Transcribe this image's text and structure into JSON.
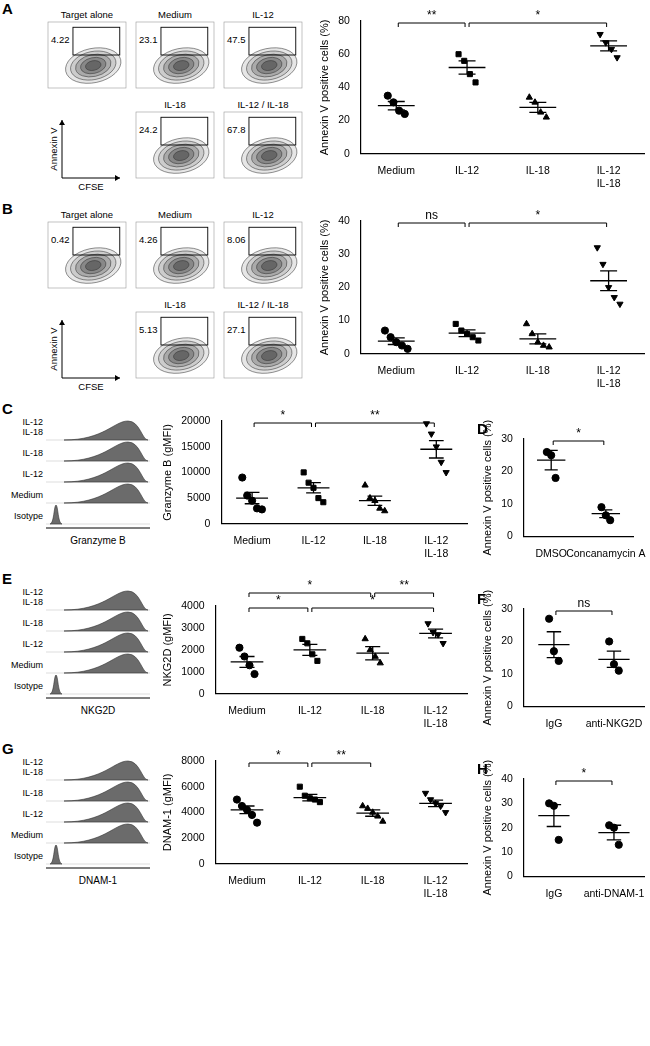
{
  "chart_data": [
    {
      "type": "contour",
      "title": "A",
      "x_label": "CFSE",
      "y_label": "Annexin V",
      "categories": [
        "Target alone",
        "Medium",
        "IL-12",
        "IL-18",
        "IL-12 / IL-18"
      ],
      "values": [
        4.22,
        23.1,
        47.5,
        24.2,
        67.8
      ],
      "data_labels": true
    },
    {
      "type": "dot",
      "y_label": "Annexin V positive cells (%)",
      "ylim": [
        0,
        80
      ],
      "yticks": [
        0,
        20,
        40,
        60,
        80
      ],
      "color": "#000000",
      "series": [
        {
          "name": "Medium",
          "marker": "circle",
          "values": [
            35,
            31,
            26,
            24
          ],
          "mean": 29,
          "sem": 2.5
        },
        {
          "name": "IL-12",
          "marker": "square",
          "values": [
            60,
            56,
            48,
            43
          ],
          "mean": 52,
          "sem": 4
        },
        {
          "name": "IL-18",
          "marker": "triangle",
          "values": [
            34,
            31,
            25,
            22
          ],
          "mean": 28,
          "sem": 3
        },
        {
          "name": "IL-12\nIL-18",
          "marker": "triangle-down",
          "values": [
            72,
            67,
            63,
            58
          ],
          "mean": 65,
          "sem": 3
        }
      ],
      "annotations": [
        {
          "from": "Medium",
          "to": "IL-12",
          "label": "**"
        },
        {
          "from": "IL-12",
          "to": "IL-12\nIL-18",
          "label": "*"
        }
      ]
    },
    {
      "type": "contour",
      "title": "B",
      "x_label": "CFSE",
      "y_label": "Annexin V",
      "categories": [
        "Target alone",
        "Medium",
        "IL-12",
        "IL-18",
        "IL-12 / IL-18"
      ],
      "values": [
        0.42,
        4.26,
        8.06,
        5.13,
        27.1
      ],
      "data_labels": true
    },
    {
      "type": "dot",
      "y_label": "Annexin V positive cells (%)",
      "ylim": [
        0,
        40
      ],
      "yticks": [
        0,
        10,
        20,
        30,
        40
      ],
      "color": "#000000",
      "series": [
        {
          "name": "Medium",
          "marker": "circle",
          "values": [
            7,
            5,
            3.5,
            2.5,
            1.5
          ],
          "mean": 3.8,
          "sem": 1
        },
        {
          "name": "IL-12",
          "marker": "square",
          "values": [
            9,
            7,
            6,
            5,
            4
          ],
          "mean": 6.2,
          "sem": 1
        },
        {
          "name": "IL-18",
          "marker": "triangle",
          "values": [
            9,
            6,
            3.5,
            2.5,
            2
          ],
          "mean": 4.5,
          "sem": 1.5
        },
        {
          "name": "IL-12\nIL-18",
          "marker": "triangle-down",
          "values": [
            32,
            27,
            20,
            17,
            15
          ],
          "mean": 22,
          "sem": 3
        }
      ],
      "annotations": [
        {
          "from": "Medium",
          "to": "IL-12",
          "label": "ns"
        },
        {
          "from": "IL-12",
          "to": "IL-12\nIL-18",
          "label": "*"
        }
      ]
    },
    {
      "type": "density_overlay",
      "title": "C",
      "x_label": "Granzyme B",
      "categories": [
        "IL-12\nIL-18",
        "IL-18",
        "IL-12",
        "Medium",
        "Isotype"
      ]
    },
    {
      "type": "dot",
      "y_label": "Granzyme B (gMFI)",
      "ylim": [
        0,
        20000
      ],
      "yticks": [
        0,
        5000,
        10000,
        15000,
        20000
      ],
      "color": "#000000",
      "series": [
        {
          "name": "Medium",
          "marker": "circle",
          "values": [
            9000,
            5500,
            4500,
            3000,
            2800
          ],
          "mean": 5000,
          "sem": 1100
        },
        {
          "name": "IL-12",
          "marker": "square",
          "values": [
            10000,
            8000,
            7000,
            5000,
            4200
          ],
          "mean": 7000,
          "sem": 1000
        },
        {
          "name": "IL-18",
          "marker": "triangle",
          "values": [
            7500,
            5000,
            4500,
            3000,
            2500
          ],
          "mean": 4500,
          "sem": 900
        },
        {
          "name": "IL-12\nIL-18",
          "marker": "triangle-down",
          "values": [
            19500,
            17500,
            15000,
            12000,
            10000
          ],
          "mean": 14500,
          "sem": 1700
        }
      ],
      "annotations": [
        {
          "from": "Medium",
          "to": "IL-12",
          "label": "*"
        },
        {
          "from": "IL-12",
          "to": "IL-12\nIL-18",
          "label": "**"
        }
      ]
    },
    {
      "type": "dot",
      "title": "D",
      "y_label": "Annexin V positive cells (%)",
      "ylim": [
        0,
        30
      ],
      "yticks": [
        0,
        10,
        20,
        30
      ],
      "color": "#000000",
      "series": [
        {
          "name": "DMSO",
          "marker": "circle",
          "values": [
            26,
            25,
            18
          ],
          "mean": 23.5,
          "sem": 3
        },
        {
          "name": "Concanamycin A",
          "marker": "circle",
          "values": [
            9,
            6.5,
            5
          ],
          "mean": 7,
          "sem": 1.2
        }
      ],
      "annotations": [
        {
          "from": "DMSO",
          "to": "Concanamycin A",
          "label": "*"
        }
      ]
    },
    {
      "type": "density_overlay",
      "title": "E",
      "x_label": "NKG2D",
      "categories": [
        "IL-12\nIL-18",
        "IL-18",
        "IL-12",
        "Medium",
        "Isotype"
      ]
    },
    {
      "type": "dot",
      "y_label": "NKG2D (gMFI)",
      "ylim": [
        0,
        4000
      ],
      "yticks": [
        0,
        1000,
        2000,
        3000,
        4000
      ],
      "color": "#000000",
      "series": [
        {
          "name": "Medium",
          "marker": "circle",
          "values": [
            2100,
            1700,
            1300,
            900
          ],
          "mean": 1450,
          "sem": 250
        },
        {
          "name": "IL-12",
          "marker": "square",
          "values": [
            2500,
            2300,
            1800,
            1500
          ],
          "mean": 2000,
          "sem": 250
        },
        {
          "name": "IL-18",
          "marker": "triangle",
          "values": [
            2500,
            2000,
            1700,
            1400
          ],
          "mean": 1850,
          "sem": 300
        },
        {
          "name": "IL-12\nIL-18",
          "marker": "triangle-down",
          "values": [
            3200,
            2800,
            2700,
            2300
          ],
          "mean": 2750,
          "sem": 200
        }
      ],
      "annotations": [
        {
          "from": "Medium",
          "to": "IL-12",
          "label": "*"
        },
        {
          "from": "IL-12",
          "to": "IL-12\nIL-18",
          "label": "*"
        },
        {
          "from": "Medium",
          "to": "IL-18",
          "label": "*"
        },
        {
          "from": "IL-18",
          "to": "IL-12\nIL-18",
          "label": "**"
        }
      ]
    },
    {
      "type": "dot",
      "title": "F",
      "y_label": "Annexin V positive cells (%)",
      "ylim": [
        0,
        30
      ],
      "yticks": [
        0,
        10,
        20,
        30
      ],
      "color": "#000000",
      "series": [
        {
          "name": "IgG",
          "marker": "circle",
          "values": [
            27,
            17,
            14
          ],
          "mean": 19,
          "sem": 4
        },
        {
          "name": "anti-NKG2D",
          "marker": "circle",
          "values": [
            20,
            13,
            11
          ],
          "mean": 14.5,
          "sem": 2.5
        }
      ],
      "annotations": [
        {
          "from": "IgG",
          "to": "anti-NKG2D",
          "label": "ns"
        }
      ]
    },
    {
      "type": "density_overlay",
      "title": "G",
      "x_label": "DNAM-1",
      "categories": [
        "IL-12\nIL-18",
        "IL-18",
        "IL-12",
        "Medium",
        "Isotype"
      ]
    },
    {
      "type": "dot",
      "y_label": "DNAM-1 (gMFI)",
      "ylim": [
        0,
        8000
      ],
      "yticks": [
        0,
        2000,
        4000,
        6000,
        8000
      ],
      "color": "#000000",
      "series": [
        {
          "name": "Medium",
          "marker": "circle",
          "values": [
            5000,
            4500,
            4200,
            3800,
            3200
          ],
          "mean": 4200,
          "sem": 300
        },
        {
          "name": "IL-12",
          "marker": "square",
          "values": [
            6000,
            5300,
            5100,
            5000,
            4800
          ],
          "mean": 5150,
          "sem": 250
        },
        {
          "name": "IL-18",
          "marker": "triangle",
          "values": [
            4500,
            4300,
            4000,
            3700,
            3300
          ],
          "mean": 3950,
          "sem": 250
        },
        {
          "name": "IL-12\nIL-18",
          "marker": "triangle-down",
          "values": [
            5500,
            5000,
            4700,
            4500,
            4000
          ],
          "mean": 4700,
          "sem": 250
        }
      ],
      "annotations": [
        {
          "from": "Medium",
          "to": "IL-12",
          "label": "*"
        },
        {
          "from": "IL-12",
          "to": "IL-18",
          "label": "**"
        }
      ]
    },
    {
      "type": "dot",
      "title": "H",
      "y_label": "Annexin V positive cells (%)",
      "ylim": [
        0,
        40
      ],
      "yticks": [
        0,
        10,
        20,
        30,
        40
      ],
      "color": "#000000",
      "series": [
        {
          "name": "IgG",
          "marker": "circle",
          "values": [
            30,
            29,
            15
          ],
          "mean": 25,
          "sem": 4.5
        },
        {
          "name": "anti-DNAM-1",
          "marker": "circle",
          "values": [
            21,
            20,
            13
          ],
          "mean": 18,
          "sem": 3
        }
      ],
      "annotations": [
        {
          "from": "IgG",
          "to": "anti-DNAM-1",
          "label": "*"
        }
      ]
    }
  ]
}
